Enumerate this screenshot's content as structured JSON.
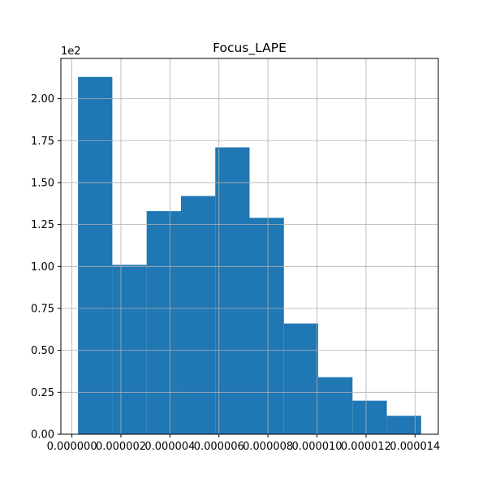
{
  "chart_data": {
    "type": "bar",
    "title": "Focus_LAPE",
    "xlabel": "",
    "ylabel": "",
    "y_offset_label": "1e2",
    "grid": true,
    "bar_color": "#1f77b4",
    "bin_edges": [
      2.5e-07,
      1.65e-06,
      3.05e-06,
      4.45e-06,
      5.85e-06,
      7.25e-06,
      8.65e-06,
      1.005e-05,
      1.145e-05,
      1.285e-05,
      1.425e-05
    ],
    "values": [
      213,
      101,
      133,
      142,
      171,
      129,
      66,
      34,
      20,
      11
    ],
    "xlim": [
      -4.5e-07,
      1.495e-05
    ],
    "ylim": [
      0,
      224
    ],
    "xticks": [
      0,
      2e-06,
      4e-06,
      6e-06,
      8e-06,
      1e-05,
      1.2e-05,
      1.4e-05
    ],
    "xtick_labels": [
      "0.000000",
      "0.000002",
      "0.000004",
      "0.000006",
      "0.000008",
      "0.000010",
      "0.000012",
      "0.000014"
    ],
    "yticks": [
      0,
      25,
      50,
      75,
      100,
      125,
      150,
      175,
      200
    ],
    "ytick_labels": [
      "0.00",
      "0.25",
      "0.50",
      "0.75",
      "1.00",
      "1.25",
      "1.50",
      "1.75",
      "2.00"
    ]
  }
}
